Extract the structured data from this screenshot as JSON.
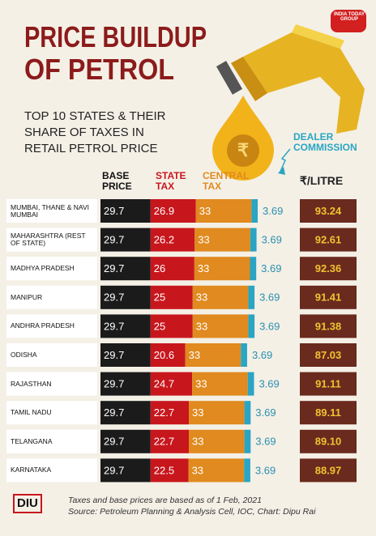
{
  "chart_data": {
    "type": "bar",
    "orientation": "horizontal",
    "stacked": true,
    "title": [
      "PRICE BUILDUP",
      "OF PETROL"
    ],
    "subtitle": [
      "TOP 10 STATES & THEIR",
      "SHARE OF TAXES IN",
      "RETAIL PETROL PRICE"
    ],
    "brand": "INDIA TODAY GROUP",
    "logo": "DIU",
    "categories": [
      "MUMBAI, THANE & NAVI MUMBAI",
      "MAHARASHTRA (REST OF STATE)",
      "MADHYA PRADESH",
      "MANIPUR",
      "ANDHRA PRADESH",
      "ODISHA",
      "RAJASTHAN",
      "TAMIL NADU",
      "TELANGANA",
      "KARNATAKA"
    ],
    "series": [
      {
        "name": "BASE PRICE",
        "color": "#1b1b1b",
        "values": [
          29.7,
          29.7,
          29.7,
          29.7,
          29.7,
          29.7,
          29.7,
          29.7,
          29.7,
          29.7
        ]
      },
      {
        "name": "STATE TAX",
        "color": "#c8161d",
        "values": [
          26.9,
          26.2,
          26,
          25,
          25,
          20.6,
          24.7,
          22.7,
          22.7,
          22.5
        ]
      },
      {
        "name": "CENTRAL TAX",
        "color": "#e08a1f",
        "values": [
          33,
          33,
          33,
          33,
          33,
          33,
          33,
          33,
          33,
          33
        ]
      },
      {
        "name": "DEALER COMMISSION",
        "color": "#2aa5c3",
        "values": [
          3.69,
          3.69,
          3.69,
          3.69,
          3.69,
          3.69,
          3.69,
          3.69,
          3.69,
          3.69
        ]
      }
    ],
    "totals": {
      "name": "₹/LITRE",
      "values": [
        93.24,
        92.61,
        92.36,
        91.41,
        91.38,
        87.03,
        91.11,
        89.11,
        89.1,
        88.97
      ],
      "value_labels": [
        "93.24",
        "92.61",
        "92.36",
        "91.41",
        "91.38",
        "87.03",
        "91.11",
        "89.11",
        "89.10",
        "88.97"
      ]
    },
    "notes": [
      "Taxes and base prices are based as of 1 Feb, 2021",
      "Source: Petroleum Planning & Analysis Cell, IOC, Chart: Dipu Rai"
    ]
  }
}
